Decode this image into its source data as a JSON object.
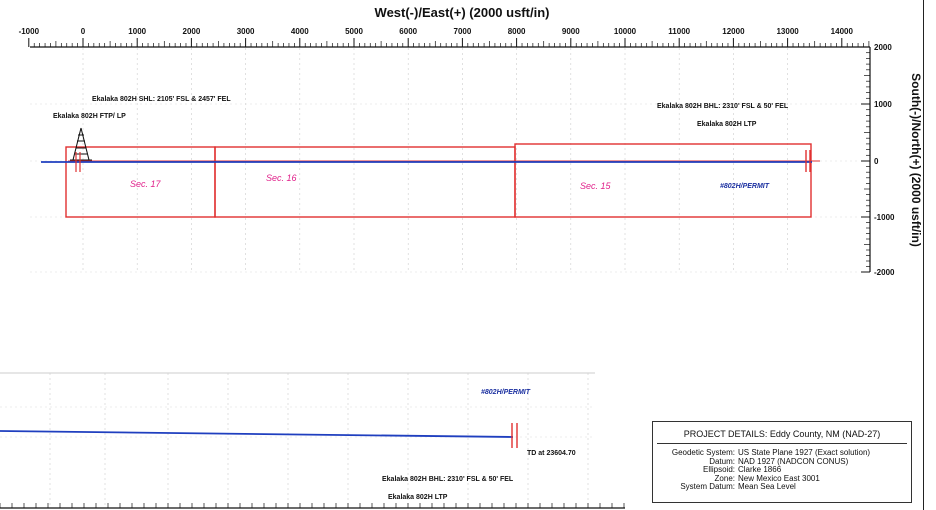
{
  "plan_view": {
    "top_axis_title": "West(-)/East(+) (2000 usft/in)",
    "right_axis_title": "South(-)/North(+) (2000 usft/in)",
    "x_ticks": [
      "-1000",
      "0",
      "1000",
      "2000",
      "3000",
      "4000",
      "5000",
      "6000",
      "7000",
      "8000",
      "9000",
      "10000",
      "11000",
      "12000",
      "13000",
      "14000"
    ],
    "y_ticks": [
      "2000",
      "1000",
      "0",
      "-1000",
      "-2000"
    ],
    "labels": {
      "shl": "Ekalaka 802H SHL: 2105' FSL & 2457' FEL",
      "ftp": "Ekalaka 802H FTP/ LP",
      "bhl": "Ekalaka 802H BHL: 2310' FSL & 50' FEL",
      "ltp": "Ekalaka 802H LTP",
      "permit": "#802H/PERMIT"
    },
    "sections": [
      "Sec. 17",
      "Sec. 16",
      "Sec. 15"
    ]
  },
  "detail_view": {
    "permit": "#802H/PERMIT",
    "td": "TD at 23604.70",
    "bhl": "Ekalaka 802H BHL: 2310' FSL & 50' FEL",
    "ltp": "Ekalaka 802H LTP"
  },
  "project": {
    "title": "PROJECT DETAILS: Eddy County, NM (NAD-27)",
    "rows": [
      {
        "key": "Geodetic System:",
        "value": "US State Plane 1927 (Exact solution)"
      },
      {
        "key": "Datum:",
        "value": "NAD 1927 (NADCON CONUS)"
      },
      {
        "key": "Ellipsoid:",
        "value": "Clarke 1866"
      },
      {
        "key": "Zone:",
        "value": "New Mexico East 3001"
      },
      {
        "key": "System Datum:",
        "value": "Mean Sea Level"
      }
    ]
  },
  "colors": {
    "lease_line": "#e03030",
    "wellbore": "#1f3fbf",
    "section_label": "#e0208a",
    "permit_label": "#1a2fa0"
  }
}
